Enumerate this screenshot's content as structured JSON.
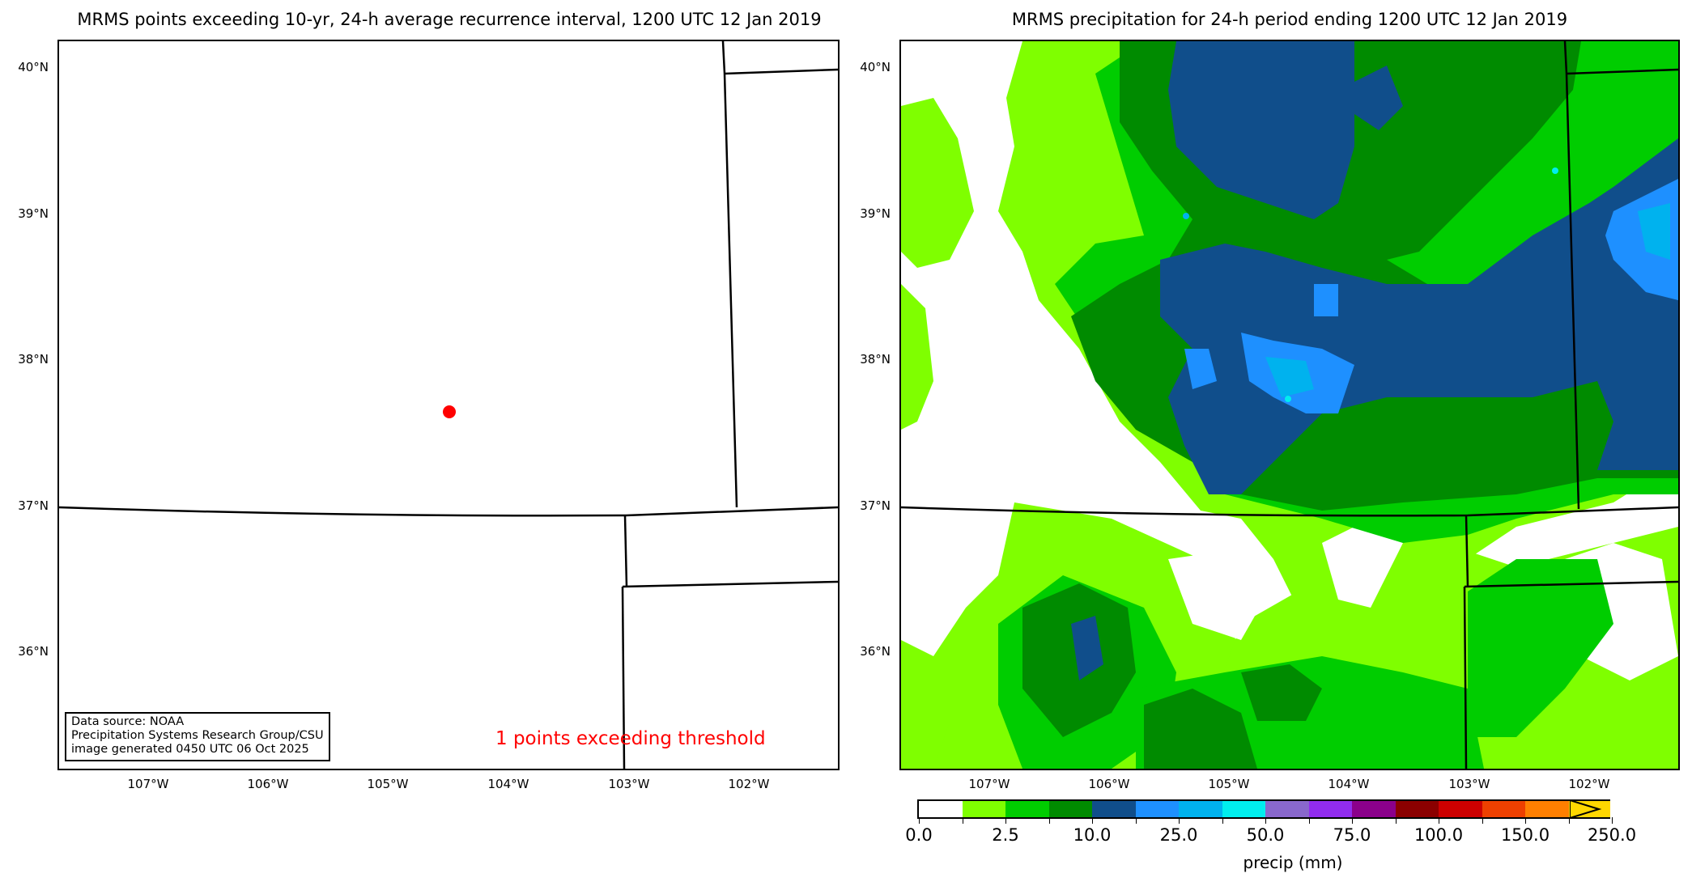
{
  "left_panel": {
    "title": "MRMS points exceeding 10-yr, 24-h average recurrence interval, 1200 UTC 12 Jan 2019",
    "info_lines": [
      "Data source: NOAA",
      "Precipitation Systems Research Group/CSU",
      "image generated 0450 UTC 06 Oct 2025"
    ],
    "count_text": "1 points exceeding threshold",
    "count_color": "#ff0000",
    "point_marker": {
      "lat": 37.65,
      "lon": -104.5,
      "color": "#ff0000"
    }
  },
  "right_panel": {
    "title": "MRMS precipitation for 24-h period ending 1200 UTC 12 Jan 2019",
    "colorbar": {
      "label": "precip (mm)",
      "tick_labels": [
        "0.0",
        "2.5",
        "10.0",
        "25.0",
        "50.0",
        "75.0",
        "100.0",
        "150.0",
        "250.0"
      ],
      "colors": [
        "#ffffff",
        "#7fff00",
        "#00cd00",
        "#008b00",
        "#104e8b",
        "#1e90ff",
        "#00b2ee",
        "#00eeee",
        "#8968cd",
        "#912cee",
        "#8b008b",
        "#8b0000",
        "#cd0000",
        "#ee4000",
        "#ff7f00",
        "#ffd700"
      ],
      "extend": "max"
    }
  },
  "axes": {
    "lat_labels": [
      "40°N",
      "39°N",
      "38°N",
      "37°N",
      "36°N"
    ],
    "lon_labels": [
      "107°W",
      "106°W",
      "105°W",
      "104°W",
      "103°W",
      "102°W"
    ]
  },
  "chart_data": [
    {
      "type": "scatter",
      "title": "MRMS points exceeding 10-yr, 24-h average recurrence interval, 1200 UTC 12 Jan 2019",
      "xlabel": "",
      "ylabel": "",
      "x": [
        -104.5
      ],
      "y": [
        37.65
      ],
      "xticks": [
        "107°W",
        "106°W",
        "105°W",
        "104°W",
        "103°W",
        "102°W"
      ],
      "yticks": [
        "40°N",
        "39°N",
        "38°N",
        "37°N",
        "36°N"
      ],
      "xlim": [
        -107.75,
        -101.25
      ],
      "ylim": [
        35.2,
        40.2
      ],
      "annotation": "1 points exceeding threshold"
    },
    {
      "type": "heatmap",
      "title": "MRMS precipitation for 24-h period ending 1200 UTC 12 Jan 2019",
      "colorbar_label": "precip (mm)",
      "levels": [
        0.0,
        1.25,
        2.5,
        5.0,
        10.0,
        15.0,
        25.0,
        37.5,
        50.0,
        62.5,
        75.0,
        87.5,
        100.0,
        125.0,
        150.0,
        200.0,
        250.0
      ],
      "colorbar_ticks": [
        0.0,
        2.5,
        10.0,
        25.0,
        50.0,
        75.0,
        100.0,
        150.0,
        250.0
      ],
      "xticks": [
        "107°W",
        "106°W",
        "105°W",
        "104°W",
        "103°W",
        "102°W"
      ],
      "yticks": [
        "40°N",
        "39°N",
        "38°N",
        "37°N",
        "36°N"
      ],
      "xlim": [
        -107.75,
        -101.25
      ],
      "ylim": [
        35.2,
        40.2
      ]
    }
  ]
}
